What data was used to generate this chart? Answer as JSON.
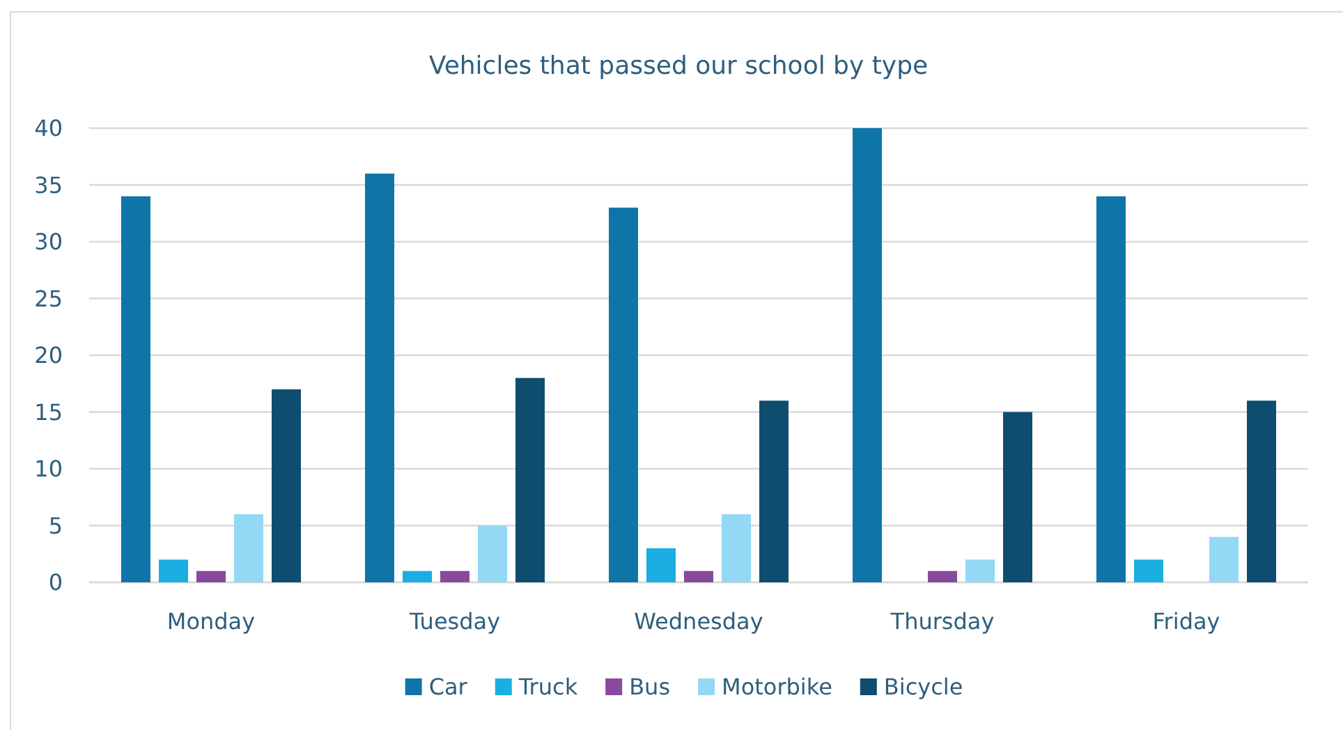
{
  "chart_data": {
    "type": "bar",
    "title": "Vehicles that passed our school by type",
    "categories": [
      "Monday",
      "Tuesday",
      "Wednesday",
      "Thursday",
      "Friday"
    ],
    "series": [
      {
        "name": "Car",
        "color": "#0f75a8",
        "values": [
          34,
          36,
          33,
          40,
          34
        ]
      },
      {
        "name": "Truck",
        "color": "#1aaee3",
        "values": [
          2,
          1,
          3,
          0,
          2
        ]
      },
      {
        "name": "Bus",
        "color": "#874a9c",
        "values": [
          1,
          1,
          1,
          1,
          0
        ]
      },
      {
        "name": "Motorbike",
        "color": "#93d9f5",
        "values": [
          6,
          5,
          6,
          2,
          4
        ]
      },
      {
        "name": "Bicycle",
        "color": "#0f4d70",
        "values": [
          17,
          18,
          16,
          15,
          16
        ]
      }
    ],
    "ylim": [
      0,
      40
    ],
    "yticks": [
      0,
      5,
      10,
      15,
      20,
      25,
      30,
      35,
      40
    ],
    "grid": "y",
    "legend": "bottom"
  }
}
